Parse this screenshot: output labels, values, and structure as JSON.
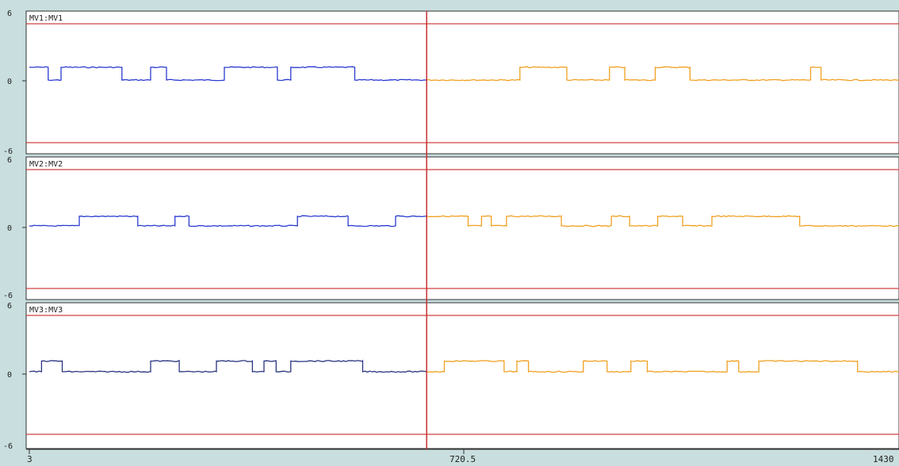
{
  "chart_data": {
    "type": "line",
    "x_ticks": [
      "3",
      "720.5",
      "1430"
    ],
    "x_range": [
      3,
      1430
    ],
    "cursor_x": 655,
    "colors": {
      "history": "#2b3bd0",
      "history_dark": "#2a3380",
      "forecast": "#f0a020",
      "limit": "#d24040",
      "cursor": "#c83030",
      "panel_bg": "#ffffff",
      "frame_bg": "#c9dede"
    },
    "panels": [
      {
        "name": "MV1:MV1",
        "y_ticks": [
          "6",
          "0",
          "-6"
        ],
        "ylim": [
          -6,
          6
        ],
        "upper_limit": 5.6,
        "lower_limit": -5.6,
        "history_color": "history",
        "forecast_color": "forecast",
        "steps": [
          [
            3,
            1.5
          ],
          [
            34,
            0.3
          ],
          [
            55,
            1.5
          ],
          [
            155,
            0.3
          ],
          [
            202,
            1.5
          ],
          [
            228,
            0.3
          ],
          [
            323,
            1.5
          ],
          [
            410,
            0.3
          ],
          [
            432,
            1.5
          ],
          [
            537,
            0.3
          ],
          [
            808,
            1.5
          ],
          [
            885,
            0.3
          ],
          [
            955,
            1.5
          ],
          [
            980,
            0.3
          ],
          [
            1030,
            1.5
          ],
          [
            1087,
            0.3
          ],
          [
            1285,
            1.5
          ],
          [
            1302,
            0.3
          ],
          [
            1430,
            0.3
          ]
        ]
      },
      {
        "name": "MV2:MV2",
        "y_ticks": [
          "6",
          "0",
          "-6"
        ],
        "ylim": [
          -6,
          6
        ],
        "upper_limit": 5.6,
        "lower_limit": -5.6,
        "history_color": "history",
        "forecast_color": "forecast",
        "steps": [
          [
            3,
            0.3
          ],
          [
            85,
            1.2
          ],
          [
            181,
            0.3
          ],
          [
            242,
            1.2
          ],
          [
            265,
            0.3
          ],
          [
            443,
            1.2
          ],
          [
            526,
            0.3
          ],
          [
            604,
            1.2
          ],
          [
            684,
            1.2
          ],
          [
            723,
            0.3
          ],
          [
            745,
            1.2
          ],
          [
            761,
            0.3
          ],
          [
            786,
            1.2
          ],
          [
            876,
            0.3
          ],
          [
            958,
            1.2
          ],
          [
            988,
            0.3
          ],
          [
            1034,
            1.2
          ],
          [
            1075,
            0.3
          ],
          [
            1123,
            1.2
          ],
          [
            1267,
            0.3
          ],
          [
            1430,
            0.3
          ]
        ]
      },
      {
        "name": "MV3:MV3",
        "y_ticks": [
          "6",
          "0",
          "-6"
        ],
        "ylim": [
          -6,
          6
        ],
        "upper_limit": 5.6,
        "lower_limit": -5.6,
        "history_color": "history_dark",
        "forecast_color": "forecast",
        "steps": [
          [
            3,
            0.3
          ],
          [
            23,
            1.3
          ],
          [
            57,
            0.3
          ],
          [
            202,
            1.3
          ],
          [
            249,
            0.3
          ],
          [
            310,
            1.3
          ],
          [
            369,
            0.3
          ],
          [
            388,
            1.3
          ],
          [
            408,
            0.3
          ],
          [
            432,
            1.3
          ],
          [
            460,
            1.3
          ],
          [
            550,
            0.3
          ],
          [
            684,
            1.3
          ],
          [
            782,
            0.3
          ],
          [
            803,
            1.3
          ],
          [
            822,
            0.3
          ],
          [
            912,
            1.3
          ],
          [
            951,
            0.3
          ],
          [
            990,
            1.3
          ],
          [
            1017,
            0.3
          ],
          [
            1148,
            1.3
          ],
          [
            1167,
            0.3
          ],
          [
            1200,
            1.3
          ],
          [
            1362,
            0.3
          ],
          [
            1430,
            0.3
          ]
        ]
      }
    ]
  }
}
